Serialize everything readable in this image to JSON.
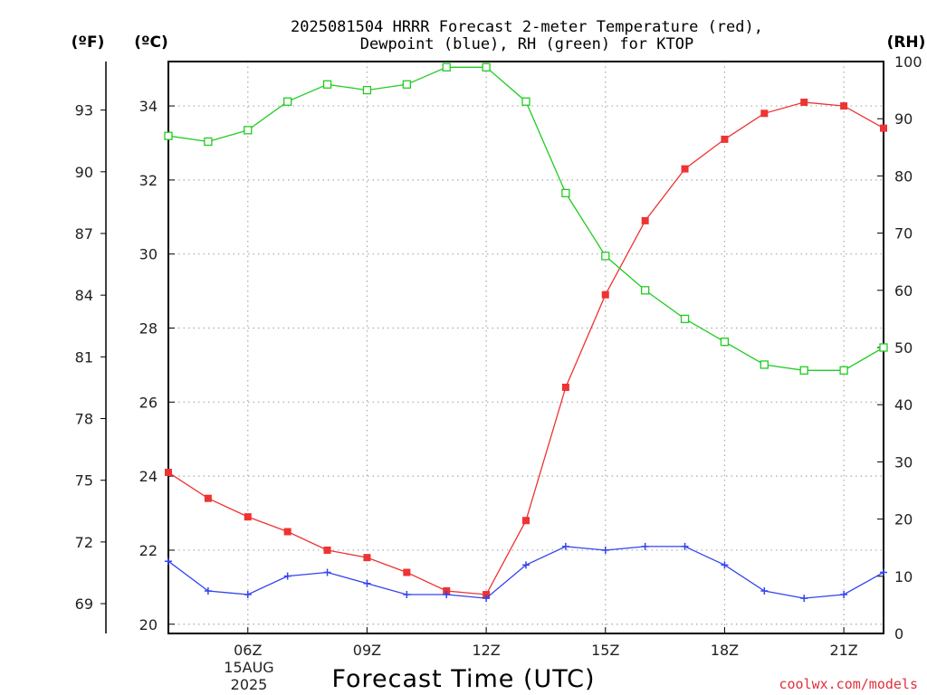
{
  "chart_data": {
    "type": "line",
    "title_line1": "2025081504 HRRR Forecast 2-meter Temperature (red),",
    "title_line2": "Dewpoint (blue), RH (green) for KTOP",
    "unit_f": "(ºF)",
    "unit_c": "(ºC)",
    "unit_rh": "(RH)",
    "xlabel": "Forecast Time (UTC)",
    "credit": "coolwx.com/models",
    "date_label": [
      "15AUG",
      "2025"
    ],
    "x_range": [
      4,
      22
    ],
    "x_ticks": [
      {
        "hour": 6,
        "label": "06Z"
      },
      {
        "hour": 9,
        "label": "09Z"
      },
      {
        "hour": 12,
        "label": "12Z"
      },
      {
        "hour": 15,
        "label": "15Z"
      },
      {
        "hour": 18,
        "label": "18Z"
      },
      {
        "hour": 21,
        "label": "21Z"
      }
    ],
    "y_left_c": {
      "range": [
        19.75,
        35.2
      ],
      "ticks": [
        "20",
        "22",
        "24",
        "26",
        "28",
        "30",
        "32",
        "34"
      ]
    },
    "y_left_f": {
      "ticks": [
        "69",
        "72",
        "75",
        "78",
        "81",
        "84",
        "87",
        "90",
        "93"
      ]
    },
    "y_right_rh": {
      "range": [
        0,
        100
      ],
      "ticks": [
        "0",
        "10",
        "20",
        "30",
        "40",
        "50",
        "60",
        "70",
        "80",
        "90",
        "100"
      ]
    },
    "grid": true,
    "colors": {
      "temperature": "#ee3333",
      "dewpoint": "#3344ee",
      "rh": "#22cc22"
    },
    "series": [
      {
        "name": "Temperature",
        "axis": "C",
        "marker": "filled-square",
        "x": [
          4,
          5,
          6,
          7,
          8,
          9,
          10,
          11,
          12,
          13,
          14,
          15,
          16,
          17,
          18,
          19,
          20,
          21,
          22
        ],
        "values": [
          24.1,
          23.4,
          22.9,
          22.5,
          22.0,
          21.8,
          21.4,
          20.9,
          20.8,
          22.8,
          26.4,
          28.9,
          30.9,
          32.3,
          33.1,
          33.8,
          34.1,
          34.0,
          33.4
        ]
      },
      {
        "name": "Dewpoint",
        "axis": "C",
        "marker": "plus",
        "x": [
          4,
          5,
          6,
          7,
          8,
          9,
          10,
          11,
          12,
          13,
          14,
          15,
          16,
          17,
          18,
          19,
          20,
          21,
          22
        ],
        "values": [
          21.7,
          20.9,
          20.8,
          21.3,
          21.4,
          21.1,
          20.8,
          20.8,
          20.7,
          21.6,
          22.1,
          22.0,
          22.1,
          22.1,
          21.6,
          20.9,
          20.7,
          20.8,
          21.4
        ]
      },
      {
        "name": "RH",
        "axis": "RH",
        "marker": "open-square",
        "x": [
          4,
          5,
          6,
          7,
          8,
          9,
          10,
          11,
          12,
          13,
          14,
          15,
          16,
          17,
          18,
          19,
          20,
          21,
          22
        ],
        "values": [
          87,
          86,
          88,
          93,
          96,
          95,
          96,
          99,
          99,
          93,
          77,
          66,
          60,
          55,
          51,
          47,
          46,
          46,
          50
        ]
      }
    ]
  }
}
